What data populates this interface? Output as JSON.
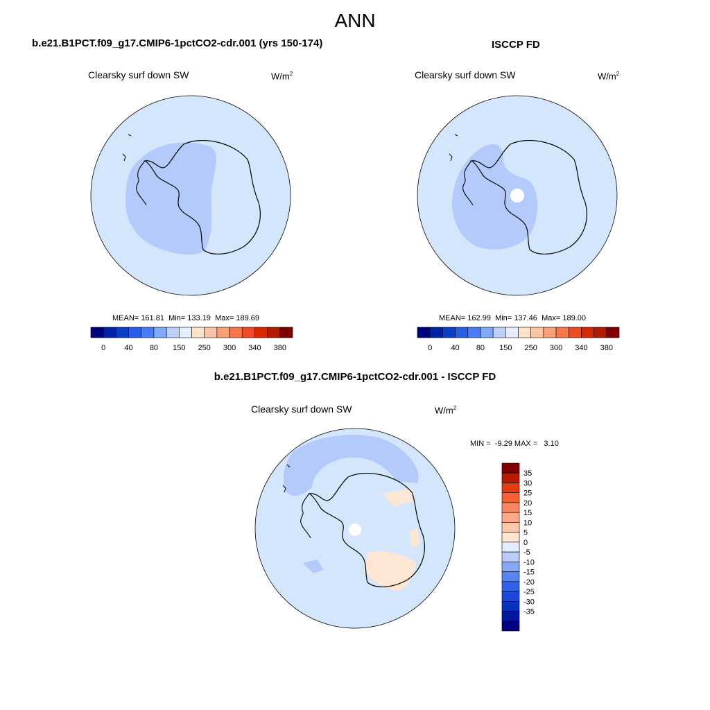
{
  "figure": {
    "title": "ANN",
    "panel1_title": "b.e21.B1PCT.f09_g17.CMIP6-1pctCO2-cdr.001 (yrs 150-174)",
    "panel2_title": "ISCCP FD",
    "panel3_title": "b.e21.B1PCT.f09_g17.CMIP6-1pctCO2-cdr.001 - ISCCP FD"
  },
  "panels": [
    {
      "variable": "Clearsky surf down SW",
      "units_base": "W/m",
      "units_exp": "2",
      "stats": {
        "mean_label": "MEAN=",
        "mean": "161.81",
        "min_label": "Min=",
        "min": "133.19",
        "max_label": "Max=",
        "max": "189.69"
      }
    },
    {
      "variable": "Clearsky surf down SW",
      "units_base": "W/m",
      "units_exp": "2",
      "stats": {
        "mean_label": "MEAN=",
        "mean": "162.99",
        "min_label": "Min=",
        "min": "137.46",
        "max_label": "Max=",
        "max": "189.00"
      }
    },
    {
      "variable": "Clearsky surf down SW",
      "units_base": "W/m",
      "units_exp": "2",
      "stats": {
        "min_label": "MIN =",
        "min": "-9.29",
        "max_label": "MAX =",
        "max": "3.10"
      }
    }
  ],
  "colorbar_abs": {
    "colors": [
      "#000080",
      "#0022a8",
      "#0a3ec8",
      "#2a5ee8",
      "#4a7cf4",
      "#82a8fa",
      "#bcd0fc",
      "#e4efff",
      "#ffe4cc",
      "#fcc6a4",
      "#f9a078",
      "#f8774c",
      "#f04a22",
      "#d82800",
      "#b01a00",
      "#800000"
    ],
    "labels": [
      "0",
      "40",
      "80",
      "150",
      "250",
      "300",
      "340",
      "380"
    ],
    "label_positions": [
      1,
      3,
      5,
      7,
      9,
      11,
      13,
      15
    ]
  },
  "colorbar_diff": {
    "colors": [
      "#000080",
      "#0018a0",
      "#0a30c0",
      "#1a48dc",
      "#3060ec",
      "#5584f4",
      "#86a8f8",
      "#b8ccfc",
      "#e2ecff",
      "#ffe6d0",
      "#fdcab0",
      "#fba888",
      "#fa8660",
      "#f86030",
      "#e43c10",
      "#b81a00",
      "#800000"
    ],
    "labels": [
      "35",
      "30",
      "25",
      "20",
      "15",
      "10",
      "5",
      "0",
      "-5",
      "-10",
      "-15",
      "-20",
      "-25",
      "-30",
      "-35"
    ]
  },
  "map_colors": {
    "light_blue": "#d4e6fc",
    "mid_blue": "#b3cafb",
    "light_orange": "#fde6d4",
    "coast": "#000000"
  }
}
